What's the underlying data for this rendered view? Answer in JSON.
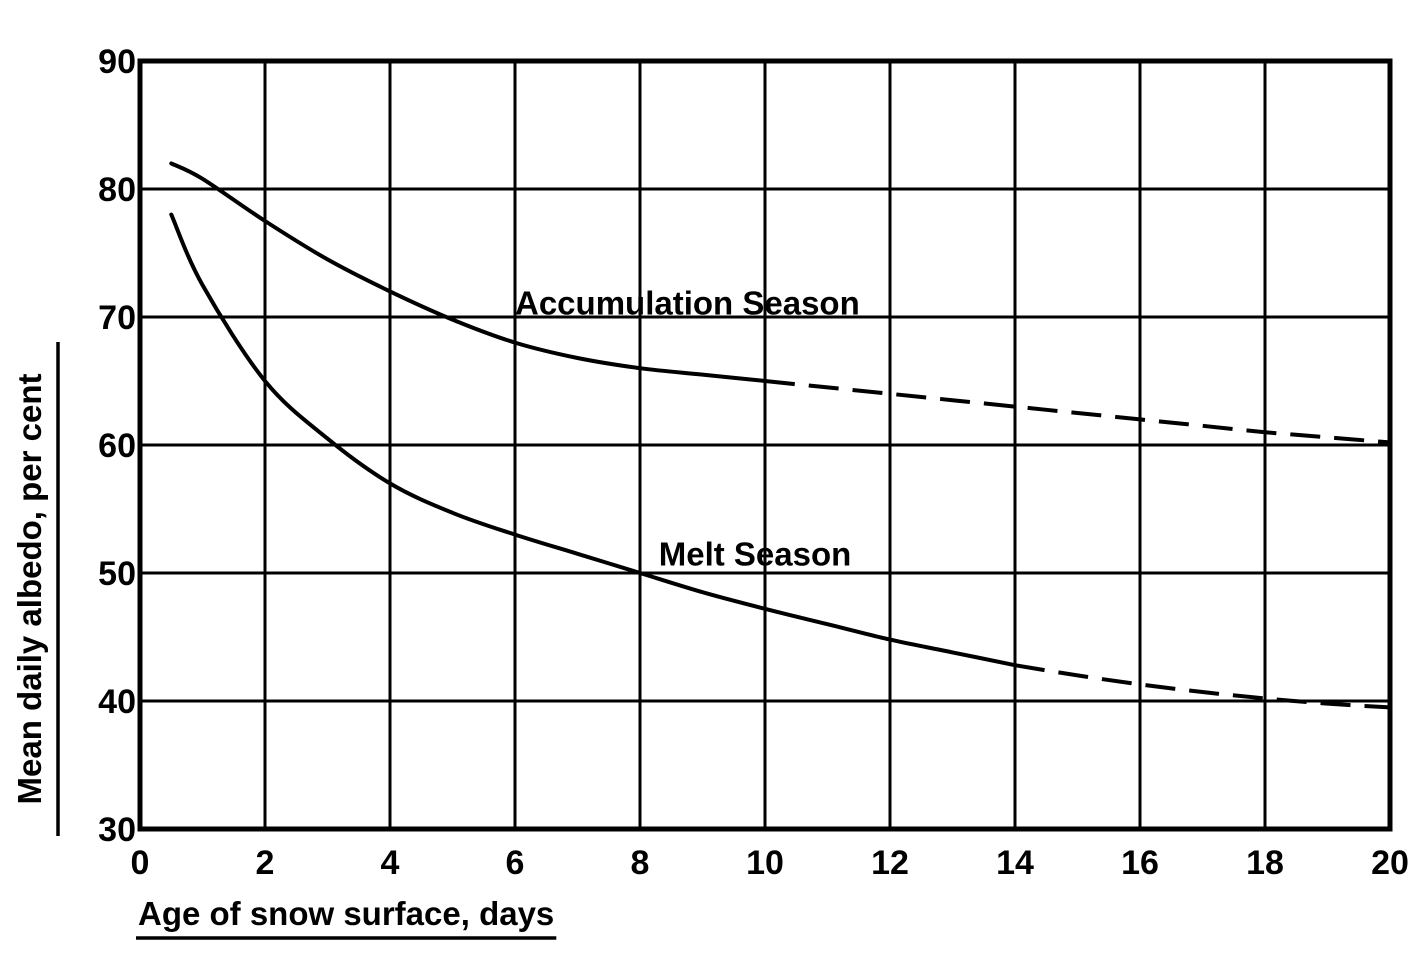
{
  "chart_data": {
    "type": "line",
    "title": "",
    "xlabel": "Age of snow surface, days",
    "ylabel": "Mean daily albedo, per cent",
    "xlim": [
      0,
      20
    ],
    "ylim": [
      30,
      90
    ],
    "grid": true,
    "x_ticks": [
      0,
      2,
      4,
      6,
      8,
      10,
      12,
      14,
      16,
      18,
      20
    ],
    "y_ticks": [
      30,
      40,
      50,
      60,
      70,
      80,
      90
    ],
    "x_tick_labels": [
      "0",
      "2",
      "4",
      "6",
      "8",
      "10",
      "12",
      "14",
      "16",
      "18",
      "20"
    ],
    "y_tick_labels": [
      "30",
      "40",
      "50",
      "60",
      "70",
      "80",
      "90"
    ],
    "series": [
      {
        "name": "Accumulation Season",
        "label": "Accumulation Season",
        "x": [
          0.5,
          1,
          2,
          3,
          4,
          5,
          6,
          7,
          8,
          9,
          10,
          11,
          12,
          13,
          14,
          15,
          16,
          17,
          18,
          19,
          20
        ],
        "values": [
          82,
          80.8,
          77.5,
          74.5,
          72,
          69.8,
          68,
          66.8,
          66,
          65.5,
          65,
          64.5,
          64,
          63.5,
          63,
          62.5,
          62,
          61.5,
          61,
          60.6,
          60.2
        ],
        "solid_until_x": 10,
        "label_anchor": {
          "x": 6,
          "y": 70.2
        }
      },
      {
        "name": "Melt Season",
        "label": "Melt Season",
        "x": [
          0.5,
          1,
          2,
          3,
          4,
          5,
          6,
          7,
          8,
          9,
          10,
          11,
          12,
          13,
          14,
          15,
          16,
          17,
          18,
          19,
          20
        ],
        "values": [
          78,
          72.5,
          65,
          60.5,
          57,
          54.7,
          53,
          51.5,
          50,
          48.5,
          47.2,
          46,
          44.8,
          43.8,
          42.8,
          42,
          41.3,
          40.7,
          40.2,
          39.8,
          39.5
        ],
        "solid_until_x": 14,
        "label_anchor": {
          "x": 8.3,
          "y": 50.6
        }
      }
    ]
  }
}
